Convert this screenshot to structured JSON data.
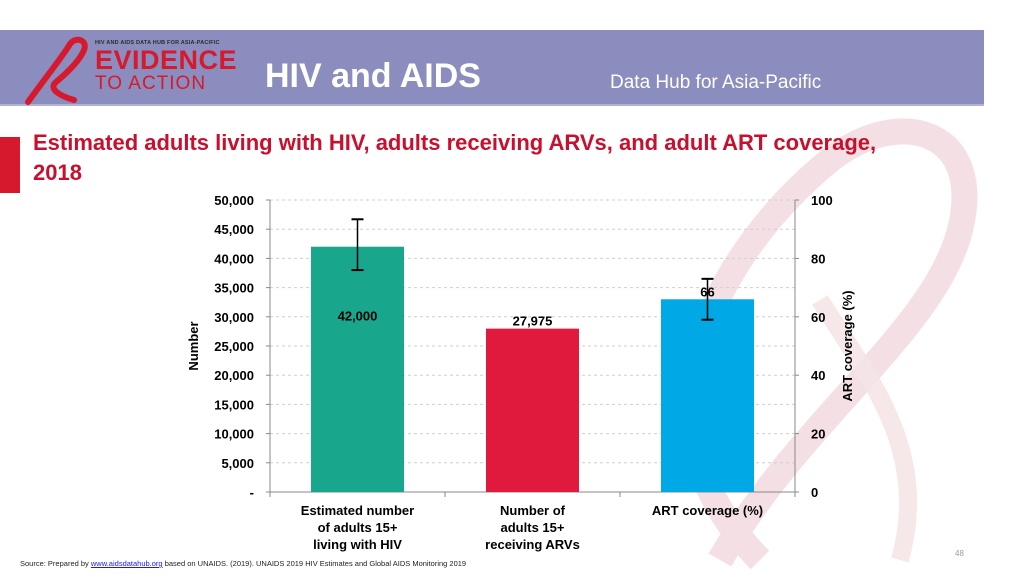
{
  "header": {
    "hub_tagline": "HIV AND AIDS DATA HUB FOR ASIA-PACIFIC",
    "logo_line1": "EVIDENCE",
    "logo_line2": "TO ACTION",
    "title": "HIV and AIDS",
    "subtitle": "Data Hub for Asia-Pacific"
  },
  "slide_title": "Estimated adults living with HIV, adults receiving ARVs, and adult ART coverage, 2018",
  "chart_data": {
    "type": "bar",
    "categories": [
      [
        "Estimated number",
        "of adults 15+",
        "living with HIV"
      ],
      [
        "Number of",
        "adults 15+",
        "receiving ARVs"
      ],
      [
        "ART coverage (%)"
      ]
    ],
    "bars": [
      {
        "category_index": 0,
        "value": 42000,
        "axis": "left",
        "color": "#18a68c",
        "label": "42,000",
        "label_pos": "inside",
        "error_low": 38000,
        "error_high": 46700
      },
      {
        "category_index": 1,
        "value": 27975,
        "axis": "left",
        "color": "#e01a3c",
        "label": "27,975",
        "label_pos": "top",
        "error_low": null,
        "error_high": null
      },
      {
        "category_index": 2,
        "value": 66,
        "axis": "right",
        "color": "#00a9e6",
        "label": "66",
        "label_pos": "top",
        "error_low": 59,
        "error_high": 73
      }
    ],
    "ylabel": "Number",
    "ylim": [
      0,
      50000
    ],
    "yticks": [
      "-",
      "5,000",
      "10,000",
      "15,000",
      "20,000",
      "25,000",
      "30,000",
      "35,000",
      "40,000",
      "45,000",
      "50,000"
    ],
    "y2label": "ART coverage (%)",
    "y2lim": [
      0,
      100
    ],
    "y2ticks": [
      "0",
      "20",
      "40",
      "60",
      "80",
      "100"
    ],
    "grid": true,
    "colors": {
      "grid": "#cfcfcf",
      "axis": "#888888",
      "text": "#000000"
    }
  },
  "footer": {
    "source_prefix": "Source: Prepared by",
    "source_link": "www.aidsdatahub.org",
    "source_suffix": "based on UNAIDS. (2019). UNAIDS 2019 HIV Estimates and Global AIDS Monitoring 2019",
    "page_number": "48"
  }
}
